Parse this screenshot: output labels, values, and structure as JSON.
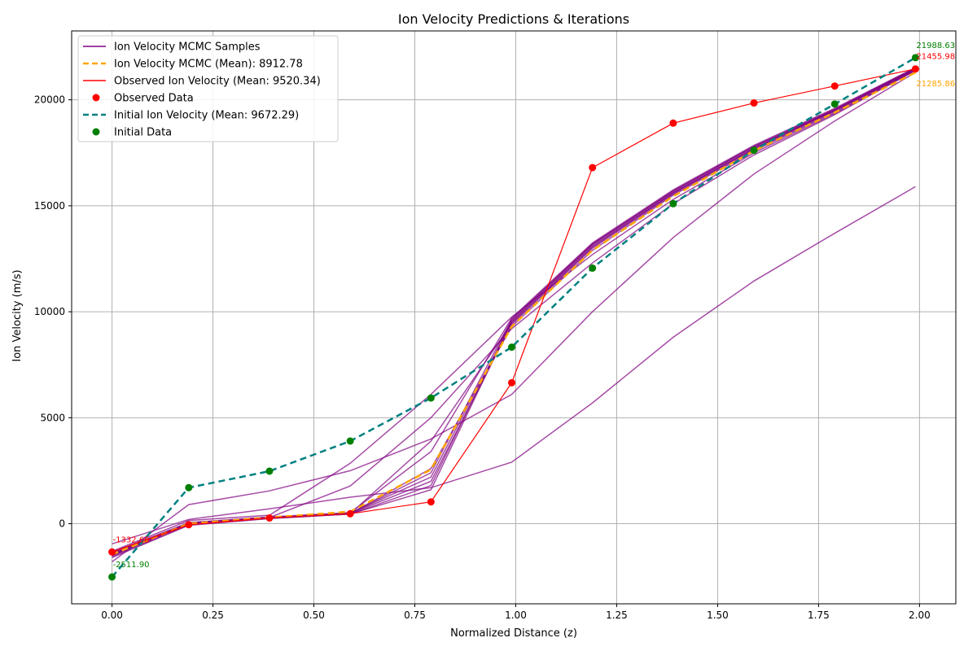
{
  "chart_data": {
    "type": "line",
    "title": "Ion Velocity Predictions & Iterations",
    "xlabel": "Normalized Distance (z)",
    "ylabel": "Ion Velocity (m/s)",
    "xlim": [
      -0.1,
      2.09
    ],
    "ylim": [
      -3780,
      23250
    ],
    "grid": true,
    "legend_position": "top-left",
    "x_ticks": [
      0.0,
      0.25,
      0.5,
      0.75,
      1.0,
      1.25,
      1.5,
      1.75,
      2.0
    ],
    "x_tick_labels": [
      "0.00",
      "0.25",
      "0.50",
      "0.75",
      "1.00",
      "1.25",
      "1.50",
      "1.75",
      "2.00"
    ],
    "y_ticks": [
      0,
      5000,
      10000,
      15000,
      20000
    ],
    "y_tick_labels": [
      "0",
      "5000",
      "10000",
      "15000",
      "20000"
    ],
    "x": [
      0.0,
      0.19,
      0.39,
      0.59,
      0.79,
      0.99,
      1.19,
      1.39,
      1.59,
      1.79,
      1.99
    ],
    "mcmc_samples": [
      [
        -1500,
        -20,
        260,
        470,
        2600,
        9300,
        12900,
        15500,
        17600,
        19400,
        21400
      ],
      [
        -1400,
        30,
        300,
        500,
        2200,
        9500,
        13100,
        15600,
        17700,
        19500,
        21450
      ],
      [
        -1550,
        -50,
        250,
        450,
        1800,
        9600,
        13200,
        15700,
        17800,
        19550,
        21500
      ],
      [
        -1450,
        10,
        280,
        480,
        2000,
        9400,
        13000,
        15550,
        17650,
        19450,
        21420
      ],
      [
        -1350,
        50,
        320,
        520,
        3400,
        9700,
        13250,
        15750,
        17850,
        19600,
        21520
      ],
      [
        -1600,
        -80,
        240,
        460,
        1600,
        9550,
        13150,
        15650,
        17750,
        19500,
        21480
      ],
      [
        -1500,
        0,
        270,
        490,
        2400,
        9650,
        13200,
        15700,
        17800,
        19550,
        21500
      ],
      [
        -1420,
        20,
        290,
        1780,
        5000,
        9200,
        12300,
        15100,
        17400,
        19300,
        21380
      ],
      [
        -1480,
        -30,
        260,
        470,
        3900,
        9450,
        13050,
        15600,
        17700,
        19500,
        21460
      ],
      [
        -950,
        200,
        700,
        1250,
        1700,
        2900,
        5700,
        8800,
        11450,
        13700,
        15900
      ],
      [
        -1800,
        900,
        1550,
        2500,
        4000,
        6100,
        10000,
        13500,
        16500,
        19000,
        21300
      ],
      [
        -1300,
        150,
        400,
        2850,
        6100,
        9750,
        12700,
        15300,
        17500,
        19350,
        21400
      ]
    ],
    "series": [
      {
        "name": "Ion Velocity MCMC (Mean): 8912.78",
        "color": "#ffa500",
        "style": "dashed",
        "values": [
          -1450,
          0,
          290,
          570,
          2550,
          9300,
          12900,
          15450,
          17600,
          19400,
          21285.86
        ]
      },
      {
        "name": "Observed Ion Velocity (Mean: 9520.34)",
        "color": "#ff0000",
        "style": "solid",
        "values": [
          -1332.66,
          -50,
          270,
          470,
          1030,
          6650,
          16800,
          18900,
          19850,
          20650,
          21455.98
        ]
      },
      {
        "name": "Initial Ion Velocity (Mean: 9672.29)",
        "color": "#008080",
        "style": "dashed",
        "values": [
          -2511.9,
          1700,
          2480,
          3900,
          5930,
          8330,
          12060,
          15100,
          17620,
          19800,
          21988.63
        ]
      }
    ],
    "legend": [
      {
        "label": "Ion Velocity MCMC Samples",
        "color": "#800080",
        "kind": "line"
      },
      {
        "label": "Ion Velocity MCMC (Mean): 8912.78",
        "color": "#ffa500",
        "kind": "dashed"
      },
      {
        "label": "Observed Ion Velocity (Mean: 9520.34)",
        "color": "#ff0000",
        "kind": "line"
      },
      {
        "label": "Observed Data",
        "color": "#ff0000",
        "kind": "marker"
      },
      {
        "label": "Initial Ion Velocity (Mean: 9672.29)",
        "color": "#008080",
        "kind": "dashed"
      },
      {
        "label": "Initial Data",
        "color": "#008000",
        "kind": "marker"
      }
    ],
    "annotations": [
      {
        "text": "21988.63",
        "x": 1.99,
        "y": 21988.63,
        "color": "#008000",
        "anchor": "above"
      },
      {
        "text": "21455.98",
        "x": 1.99,
        "y": 21455.98,
        "color": "#ff0000",
        "anchor": "above"
      },
      {
        "text": "21285.86",
        "x": 1.99,
        "y": 21285.86,
        "color": "#ffa500",
        "anchor": "below"
      },
      {
        "text": "-1332.66",
        "x": 0.0,
        "y": -1332.66,
        "color": "#ff0000",
        "anchor": "above"
      },
      {
        "text": "-2511.90",
        "x": 0.0,
        "y": -2511.9,
        "color": "#008000",
        "anchor": "above"
      }
    ],
    "colors": {
      "samples": "#800080",
      "mean": "#ffa500",
      "observed": "#ff0000",
      "initial_line": "#008080",
      "initial_points": "#008000",
      "grid": "#b0b0b0"
    }
  }
}
